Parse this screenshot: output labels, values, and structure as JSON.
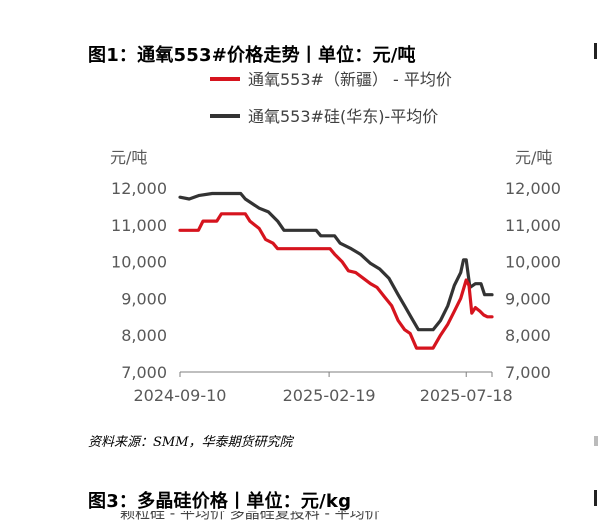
{
  "figure1": {
    "title": "图1：通氧553#价格走势丨单位：元/吨",
    "source": "资料来源：SMM，华泰期货研究院"
  },
  "figure3": {
    "title": "图3：多晶硅价格丨单位：元/kg",
    "legend_partial": "颗粒硅 - 平均价          多晶硅复投料 - 平均价"
  },
  "chart_data": {
    "type": "line",
    "legend_position": "top",
    "grid": false,
    "y_unit_left": "元/吨",
    "y_unit_right": "元/吨",
    "ylim": [
      7000,
      12000
    ],
    "yticks": [
      "7,000",
      "8,000",
      "9,000",
      "10,000",
      "11,000",
      "12,000"
    ],
    "yticks_right": [
      "7,000",
      "8,000",
      "9,000",
      "10,000",
      "11,000",
      "12,000"
    ],
    "xlim": [
      "2024-09-10",
      "2025-08-15"
    ],
    "xticks": [
      "2024-09-10",
      "2025-02-19",
      "2025-07-18"
    ],
    "series": [
      {
        "name": "通氧553#（新疆） - 平均价",
        "color": "#d6141e",
        "points": [
          [
            "2024-09-10",
            10850
          ],
          [
            "2024-09-30",
            10850
          ],
          [
            "2024-10-05",
            11100
          ],
          [
            "2024-10-20",
            11100
          ],
          [
            "2024-10-25",
            11300
          ],
          [
            "2024-11-20",
            11300
          ],
          [
            "2024-11-25",
            11100
          ],
          [
            "2024-12-05",
            10900
          ],
          [
            "2024-12-12",
            10600
          ],
          [
            "2024-12-20",
            10500
          ],
          [
            "2024-12-25",
            10350
          ],
          [
            "2025-02-20",
            10350
          ],
          [
            "2025-02-25",
            10200
          ],
          [
            "2025-03-05",
            10000
          ],
          [
            "2025-03-12",
            9750
          ],
          [
            "2025-03-20",
            9700
          ],
          [
            "2025-03-28",
            9550
          ],
          [
            "2025-04-05",
            9400
          ],
          [
            "2025-04-12",
            9300
          ],
          [
            "2025-04-20",
            9050
          ],
          [
            "2025-04-28",
            8800
          ],
          [
            "2025-05-05",
            8400
          ],
          [
            "2025-05-12",
            8150
          ],
          [
            "2025-05-18",
            8050
          ],
          [
            "2025-05-25",
            7650
          ],
          [
            "2025-06-12",
            7650
          ],
          [
            "2025-06-20",
            8000
          ],
          [
            "2025-06-28",
            8300
          ],
          [
            "2025-07-05",
            8650
          ],
          [
            "2025-07-12",
            9000
          ],
          [
            "2025-07-18",
            9500
          ],
          [
            "2025-07-21",
            9350
          ],
          [
            "2025-07-24",
            8600
          ],
          [
            "2025-07-28",
            8750
          ],
          [
            "2025-08-02",
            8650
          ],
          [
            "2025-08-06",
            8550
          ],
          [
            "2025-08-10",
            8500
          ],
          [
            "2025-08-15",
            8500
          ]
        ]
      },
      {
        "name": "通氧553#硅(华东)-平均价",
        "color": "#333333",
        "points": [
          [
            "2024-09-10",
            11750
          ],
          [
            "2024-09-20",
            11700
          ],
          [
            "2024-10-01",
            11800
          ],
          [
            "2024-10-15",
            11850
          ],
          [
            "2024-11-15",
            11850
          ],
          [
            "2024-11-20",
            11700
          ],
          [
            "2024-12-05",
            11450
          ],
          [
            "2024-12-15",
            11350
          ],
          [
            "2024-12-25",
            11100
          ],
          [
            "2025-01-01",
            10850
          ],
          [
            "2025-02-05",
            10850
          ],
          [
            "2025-02-10",
            10700
          ],
          [
            "2025-02-25",
            10700
          ],
          [
            "2025-03-03",
            10500
          ],
          [
            "2025-03-15",
            10350
          ],
          [
            "2025-03-25",
            10200
          ],
          [
            "2025-04-05",
            9950
          ],
          [
            "2025-04-15",
            9800
          ],
          [
            "2025-04-25",
            9550
          ],
          [
            "2025-05-05",
            9100
          ],
          [
            "2025-05-12",
            8800
          ],
          [
            "2025-05-20",
            8450
          ],
          [
            "2025-05-27",
            8150
          ],
          [
            "2025-06-12",
            8150
          ],
          [
            "2025-06-20",
            8400
          ],
          [
            "2025-06-28",
            8800
          ],
          [
            "2025-07-05",
            9350
          ],
          [
            "2025-07-12",
            9700
          ],
          [
            "2025-07-15",
            10050
          ],
          [
            "2025-07-18",
            10050
          ],
          [
            "2025-07-22",
            9300
          ],
          [
            "2025-07-28",
            9400
          ],
          [
            "2025-08-03",
            9400
          ],
          [
            "2025-08-07",
            9100
          ],
          [
            "2025-08-15",
            9100
          ]
        ]
      }
    ]
  }
}
